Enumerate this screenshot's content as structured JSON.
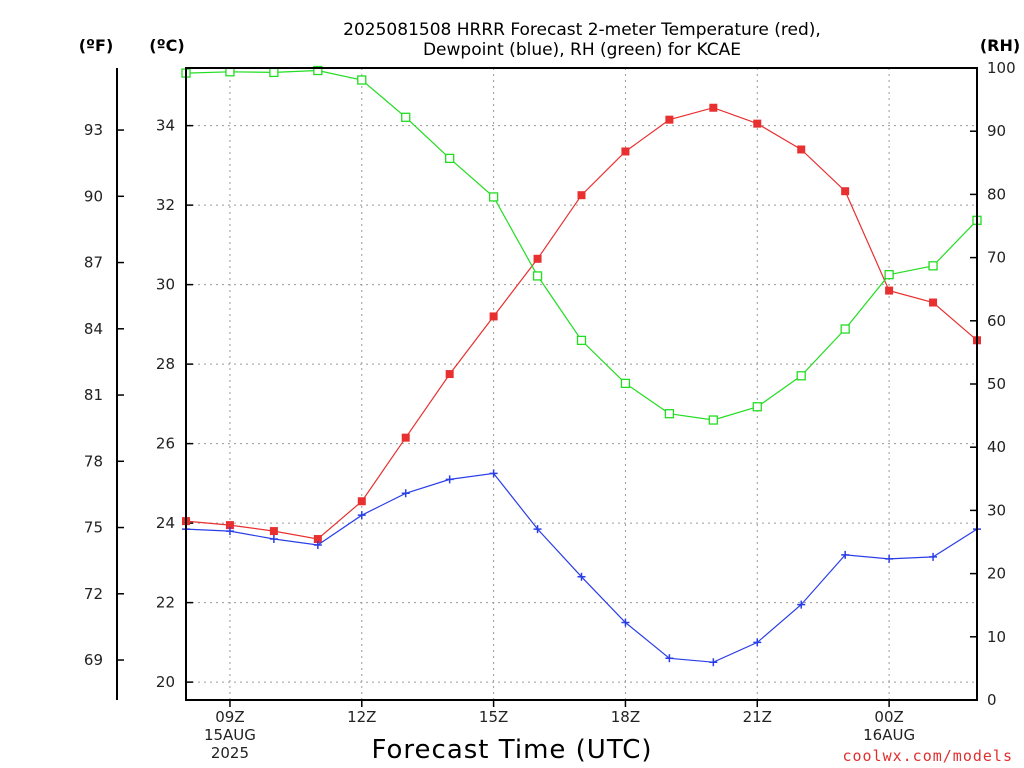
{
  "chart_data": {
    "type": "line",
    "title_line1": "2025081508 HRRR Forecast 2-meter Temperature (red),",
    "title_line2": "Dewpoint (blue), RH (green) for KCAE",
    "xlabel": "Forecast Time (UTC)",
    "credit": "coolwx.com/models",
    "units": {
      "fahrenheit": "(ºF)",
      "celsius": "(ºC)",
      "rh": "(RH)"
    },
    "x_hours": [
      8,
      9,
      10,
      11,
      12,
      13,
      14,
      15,
      16,
      17,
      18,
      19,
      20,
      21,
      22,
      23,
      24,
      25,
      26
    ],
    "x_tick_hours": [
      9,
      12,
      15,
      18,
      21,
      24
    ],
    "x_tick_labels": [
      [
        "09Z",
        "15AUG",
        "2025"
      ],
      [
        "12Z"
      ],
      [
        "15Z"
      ],
      [
        "18Z"
      ],
      [
        "21Z"
      ],
      [
        "00Z",
        "16AUG"
      ]
    ],
    "celsius_axis": {
      "min": 19.55,
      "max": 35.45,
      "ticks": [
        20,
        22,
        24,
        26,
        28,
        30,
        32,
        34
      ]
    },
    "fahrenheit_ticks": [
      69,
      72,
      75,
      78,
      81,
      84,
      87,
      90,
      93
    ],
    "rh_axis": {
      "min": 0,
      "max": 100,
      "ticks": [
        0,
        10,
        20,
        30,
        40,
        50,
        60,
        70,
        80,
        90,
        100
      ]
    },
    "series": [
      {
        "name": "Temperature",
        "color": "#e83030",
        "marker": "filled-square",
        "axis": "celsius",
        "values": [
          24.05,
          23.95,
          23.8,
          23.6,
          24.55,
          26.15,
          27.75,
          29.2,
          30.65,
          32.25,
          33.35,
          34.15,
          34.45,
          34.05,
          33.4,
          32.35,
          29.85,
          29.55,
          28.6
        ]
      },
      {
        "name": "Dewpoint",
        "color": "#2a3ee8",
        "marker": "plus",
        "axis": "celsius",
        "values": [
          23.85,
          23.8,
          23.6,
          23.45,
          24.2,
          24.75,
          25.1,
          25.25,
          23.85,
          22.65,
          21.5,
          20.6,
          20.5,
          21.0,
          21.95,
          23.2,
          23.1,
          23.15,
          23.85
        ]
      },
      {
        "name": "RH",
        "color": "#22dd22",
        "marker": "open-square",
        "axis": "rh",
        "values": [
          99.2,
          99.4,
          99.3,
          99.6,
          98.1,
          92.2,
          85.7,
          79.6,
          67.1,
          56.9,
          50.1,
          45.3,
          44.3,
          46.4,
          51.3,
          58.7,
          67.3,
          68.7,
          75.9
        ]
      }
    ],
    "grid": true
  }
}
